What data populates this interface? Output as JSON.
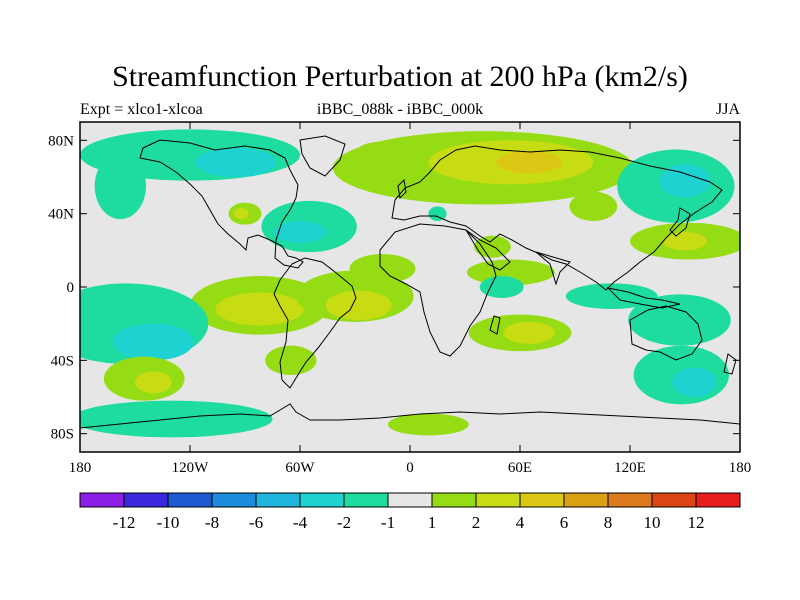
{
  "header": {
    "title": "Streamfunction Perturbation at 200 hPa (km2/s)",
    "left": "Expt = xlco1-xlcoa",
    "center": "iBBC_088k - iBBC_000k",
    "right": "JJA"
  },
  "chart_data": {
    "type": "heatmap",
    "projection": "cylindrical-equidistant",
    "title": "Streamfunction Perturbation at 200 hPa (km2/s)",
    "xlim": [
      -180,
      180
    ],
    "ylim": [
      -90,
      90
    ],
    "x_ticks": [
      {
        "value": -180,
        "label": "180"
      },
      {
        "value": -120,
        "label": "120W"
      },
      {
        "value": -60,
        "label": "60W"
      },
      {
        "value": 0,
        "label": "0"
      },
      {
        "value": 60,
        "label": "60E"
      },
      {
        "value": 120,
        "label": "120E"
      },
      {
        "value": 180,
        "label": "180"
      }
    ],
    "y_ticks": [
      {
        "value": 80,
        "label": "80N"
      },
      {
        "value": 40,
        "label": "40N"
      },
      {
        "value": 0,
        "label": "0"
      },
      {
        "value": -40,
        "label": "40S"
      },
      {
        "value": -80,
        "label": "80S"
      }
    ],
    "colorbar": {
      "colors": [
        "#8c1ee6",
        "#3c28dc",
        "#1e5ad2",
        "#1e8cdc",
        "#1eb4dc",
        "#1ed2d2",
        "#1edca0",
        "#e6e6e6",
        "#96dc14",
        "#c8dc14",
        "#dcc814",
        "#dca014",
        "#dc781e",
        "#dc4614",
        "#e61e1e"
      ],
      "labels": [
        "-12",
        "-10",
        "-8",
        "-6",
        "-4",
        "-2",
        "-1",
        "1",
        "2",
        "4",
        "6",
        "8",
        "10",
        "12"
      ]
    },
    "anomalies": [
      {
        "lon": -120,
        "lat": 72,
        "rx": 60,
        "ry": 14,
        "level": -1
      },
      {
        "lon": -95,
        "lat": 68,
        "rx": 22,
        "ry": 8,
        "level": -2
      },
      {
        "lon": -158,
        "lat": 55,
        "rx": 14,
        "ry": 18,
        "level": -1
      },
      {
        "lon": -90,
        "lat": 40,
        "rx": 9,
        "ry": 6,
        "level": 1
      },
      {
        "lon": -92,
        "lat": 40,
        "rx": 4,
        "ry": 3,
        "level": 2
      },
      {
        "lon": -55,
        "lat": 33,
        "rx": 26,
        "ry": 14,
        "level": -1
      },
      {
        "lon": -60,
        "lat": 30,
        "rx": 14,
        "ry": 6,
        "level": -2
      },
      {
        "lon": -18,
        "lat": 72,
        "rx": 12,
        "ry": 7,
        "level": 1
      },
      {
        "lon": 40,
        "lat": 65,
        "rx": 82,
        "ry": 20,
        "level": 1
      },
      {
        "lon": 55,
        "lat": 68,
        "rx": 45,
        "ry": 12,
        "level": 2
      },
      {
        "lon": 65,
        "lat": 68,
        "rx": 18,
        "ry": 6,
        "level": 4
      },
      {
        "lon": 100,
        "lat": 44,
        "rx": 13,
        "ry": 8,
        "level": 1
      },
      {
        "lon": 15,
        "lat": 40,
        "rx": 5,
        "ry": 4,
        "level": -1
      },
      {
        "lon": 145,
        "lat": 55,
        "rx": 32,
        "ry": 20,
        "level": -1
      },
      {
        "lon": 150,
        "lat": 58,
        "rx": 14,
        "ry": 9,
        "level": -2
      },
      {
        "lon": 152,
        "lat": 25,
        "rx": 32,
        "ry": 10,
        "level": 1
      },
      {
        "lon": 150,
        "lat": 25,
        "rx": 12,
        "ry": 5,
        "level": 2
      },
      {
        "lon": 45,
        "lat": 22,
        "rx": 10,
        "ry": 6,
        "level": 1
      },
      {
        "lon": 55,
        "lat": 8,
        "rx": 24,
        "ry": 7,
        "level": 1
      },
      {
        "lon": 50,
        "lat": 0,
        "rx": 12,
        "ry": 6,
        "level": -1
      },
      {
        "lon": -15,
        "lat": 10,
        "rx": 18,
        "ry": 8,
        "level": 1
      },
      {
        "lon": 110,
        "lat": -5,
        "rx": 25,
        "ry": 7,
        "level": -1
      },
      {
        "lon": 147,
        "lat": -18,
        "rx": 28,
        "ry": 14,
        "level": -1
      },
      {
        "lon": 148,
        "lat": -48,
        "rx": 26,
        "ry": 16,
        "level": -1
      },
      {
        "lon": 155,
        "lat": -52,
        "rx": 12,
        "ry": 8,
        "level": -2
      },
      {
        "lon": 60,
        "lat": -25,
        "rx": 28,
        "ry": 10,
        "level": 1
      },
      {
        "lon": 65,
        "lat": -25,
        "rx": 14,
        "ry": 6,
        "level": 2
      },
      {
        "lon": -82,
        "lat": -10,
        "rx": 38,
        "ry": 16,
        "level": 1
      },
      {
        "lon": -82,
        "lat": -12,
        "rx": 24,
        "ry": 9,
        "level": 2
      },
      {
        "lon": -30,
        "lat": -5,
        "rx": 32,
        "ry": 14,
        "level": 1
      },
      {
        "lon": -28,
        "lat": -10,
        "rx": 18,
        "ry": 8,
        "level": 2
      },
      {
        "lon": -65,
        "lat": -40,
        "rx": 14,
        "ry": 8,
        "level": 1
      },
      {
        "lon": -155,
        "lat": -20,
        "rx": 45,
        "ry": 22,
        "level": -1
      },
      {
        "lon": -140,
        "lat": -30,
        "rx": 22,
        "ry": 10,
        "level": -2
      },
      {
        "lon": -145,
        "lat": -50,
        "rx": 22,
        "ry": 12,
        "level": 1
      },
      {
        "lon": -140,
        "lat": -52,
        "rx": 10,
        "ry": 6,
        "level": 2
      },
      {
        "lon": -130,
        "lat": -72,
        "rx": 55,
        "ry": 10,
        "level": -1
      },
      {
        "lon": 10,
        "lat": -75,
        "rx": 22,
        "ry": 6,
        "level": 1
      }
    ]
  }
}
